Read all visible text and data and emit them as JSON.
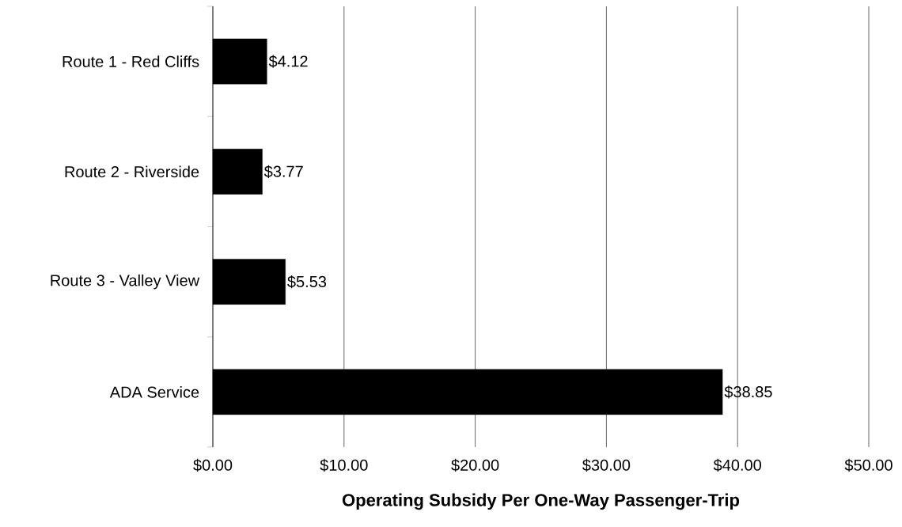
{
  "chart_data": {
    "type": "bar",
    "orientation": "horizontal",
    "xlabel": "Operating Subsidy Per One-Way Passenger-Trip",
    "categories": [
      "Route 1 - Red Cliffs",
      "Route 2 - Riverside",
      "Route 3 - Valley View",
      "ADA Service"
    ],
    "values": [
      4.12,
      3.77,
      5.53,
      38.85
    ],
    "color": "#000000",
    "value_labels": [
      "$4.12",
      "$3.77",
      "$5.53",
      "$38.85"
    ],
    "xlim": [
      0,
      50
    ],
    "xticks": [
      {
        "value": 0,
        "label": "$0.00"
      },
      {
        "value": 10,
        "label": "$10.00"
      },
      {
        "value": 20,
        "label": "$20.00"
      },
      {
        "value": 30,
        "label": "$30.00"
      },
      {
        "value": 40,
        "label": "$40.00"
      },
      {
        "value": 50,
        "label": "$50.00"
      }
    ],
    "grid": "x"
  }
}
